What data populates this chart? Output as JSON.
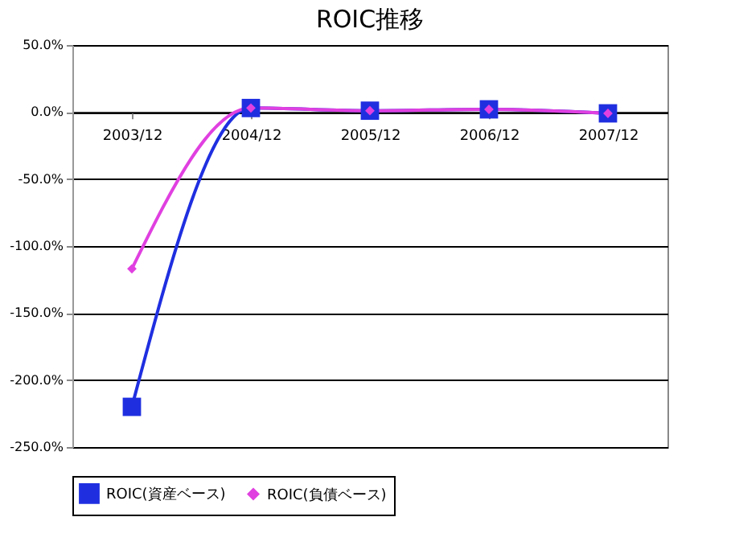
{
  "chart_data": {
    "type": "line",
    "title": "ROIC推移",
    "categories": [
      "2003/12",
      "2004/12",
      "2005/12",
      "2006/12",
      "2007/12"
    ],
    "series": [
      {
        "name": "ROIC(資産ベース)",
        "color": "#1f2fe0",
        "values": [
          -220,
          3,
          1,
          2,
          -1
        ],
        "marker": "square"
      },
      {
        "name": "ROIC(負債ベース)",
        "color": "#e040e0",
        "values": [
          -117,
          3,
          1,
          2,
          -1
        ],
        "marker": "diamond"
      }
    ],
    "ylim": [
      -250,
      50
    ],
    "yticks": [
      {
        "value": -250,
        "label": "-250.0%"
      },
      {
        "value": -200,
        "label": "-200.0%"
      },
      {
        "value": -150,
        "label": "-150.0%"
      },
      {
        "value": -100,
        "label": "-100.0%"
      },
      {
        "value": -50,
        "label": "-50.0%"
      },
      {
        "value": 0,
        "label": "0.0%"
      },
      {
        "value": 50,
        "label": "50.0%"
      }
    ],
    "grid": "y",
    "legend": "bottom"
  }
}
